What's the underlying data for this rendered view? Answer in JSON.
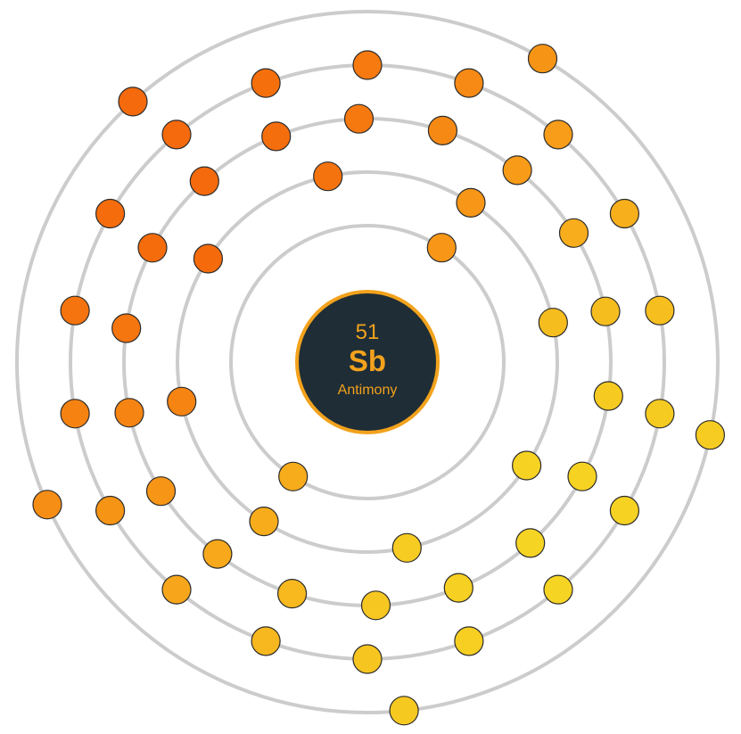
{
  "element": {
    "atomic_number": "51",
    "symbol": "Sb",
    "name": "Antimony"
  },
  "shells": [
    {
      "shell": 1,
      "electrons": 2
    },
    {
      "shell": 2,
      "electrons": 8
    },
    {
      "shell": 3,
      "electrons": 18
    },
    {
      "shell": 4,
      "electrons": 18
    },
    {
      "shell": 5,
      "electrons": 5
    }
  ],
  "colors": {
    "shell_stroke": "#cccccc",
    "nucleus_fill": "#1f2d36",
    "nucleus_accent": "#f2a21c",
    "electron_gradient": [
      "#f56a0c",
      "#f7a21a",
      "#f6d423"
    ]
  }
}
